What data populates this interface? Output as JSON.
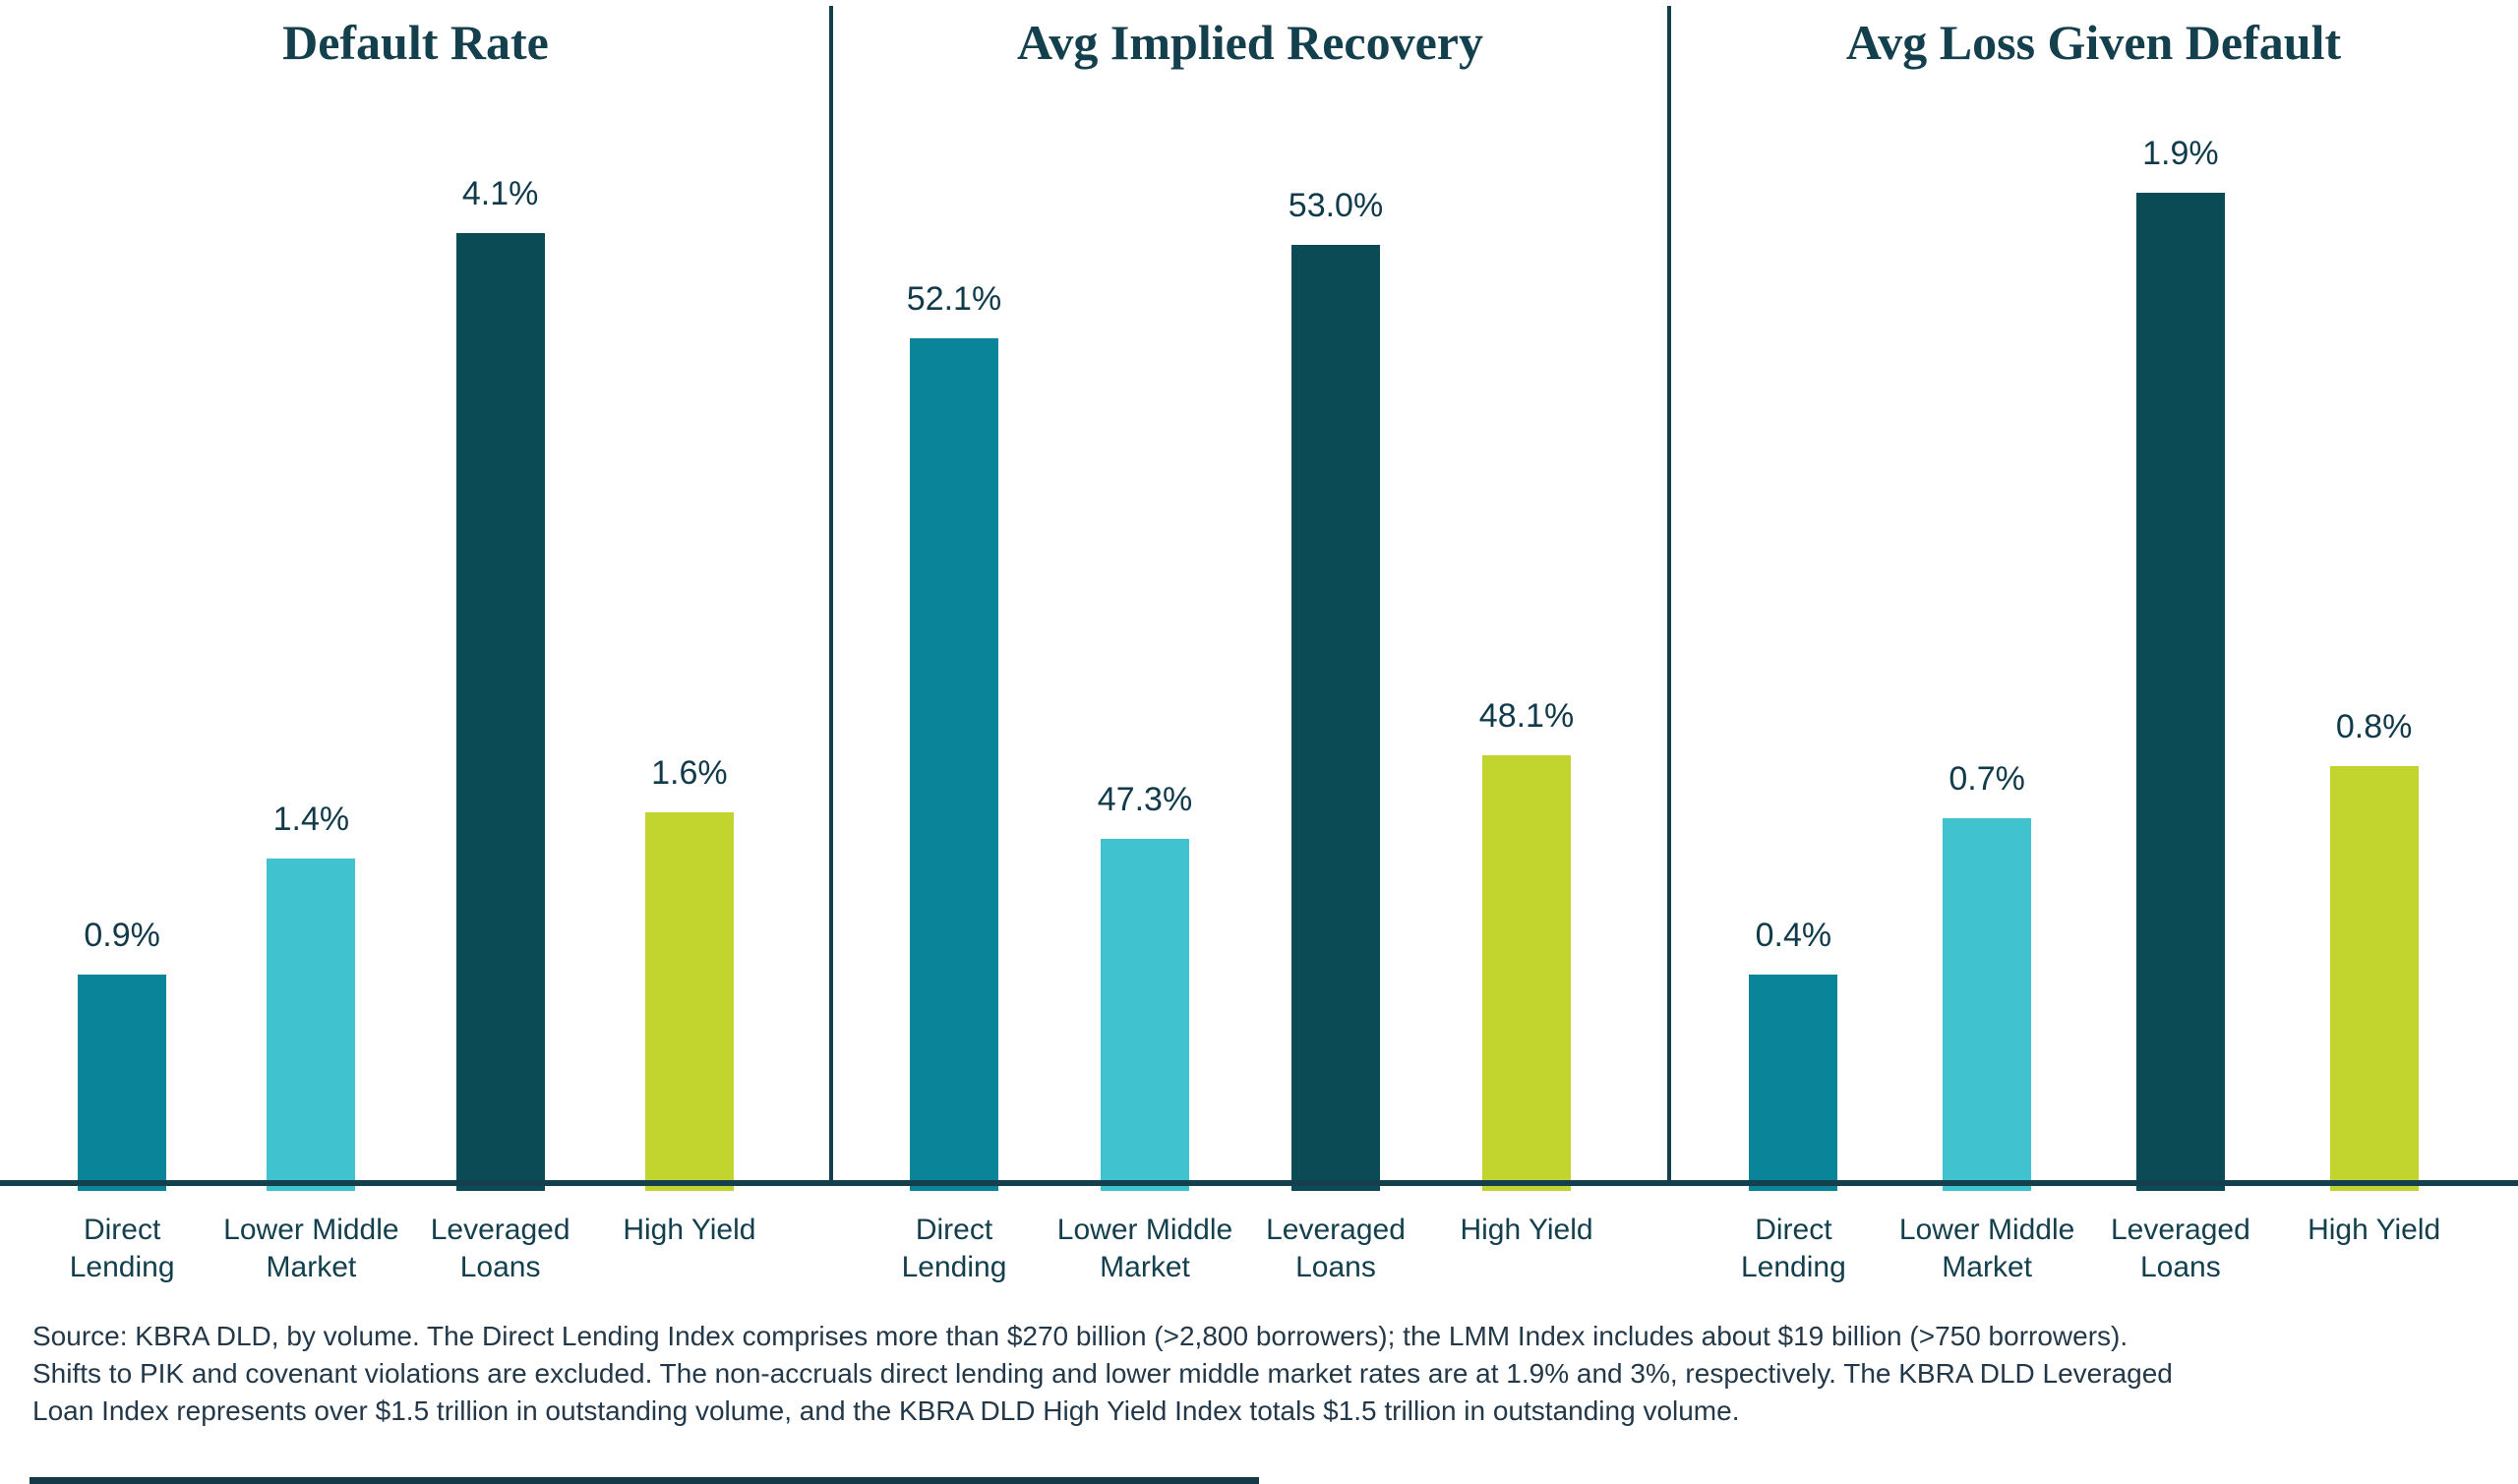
{
  "colors": {
    "accent": "#14404e",
    "note_text": "#233848",
    "direct_lending": "#0a8498",
    "lower_middle_market": "#40c3cf",
    "leveraged_loans": "#0b4b56",
    "high_yield": "#c2d42e"
  },
  "chart_data": {
    "type": "bar",
    "grid": false,
    "legend": false,
    "categories": [
      "Direct Lending",
      "Lower Middle Market",
      "Leveraged Loans",
      "High Yield"
    ],
    "panels": [
      {
        "title": "Default Rate",
        "ylim": [
          0,
          4.5
        ],
        "bars": [
          {
            "category": "Direct Lending",
            "cat_line1": "Direct",
            "cat_line2": "Lending",
            "value": 0.9,
            "label": "0.9%",
            "color": "#0a8498"
          },
          {
            "category": "Lower Middle Market",
            "cat_line1": "Lower Middle",
            "cat_line2": "Market",
            "value": 1.4,
            "label": "1.4%",
            "color": "#40c3cf"
          },
          {
            "category": "Leveraged Loans",
            "cat_line1": "Leveraged",
            "cat_line2": "Loans",
            "value": 4.1,
            "label": "4.1%",
            "color": "#0b4b56"
          },
          {
            "category": "High Yield",
            "cat_line1": "High Yield",
            "cat_line2": "",
            "value": 1.6,
            "label": "1.6%",
            "color": "#c2d42e"
          }
        ]
      },
      {
        "title": "Avg Implied Recovery",
        "ylim": [
          44,
          54
        ],
        "bars": [
          {
            "category": "Direct Lending",
            "cat_line1": "Direct",
            "cat_line2": "Lending",
            "value": 52.1,
            "label": "52.1%",
            "color": "#0a8498"
          },
          {
            "category": "Lower Middle Market",
            "cat_line1": "Lower Middle",
            "cat_line2": "Market",
            "value": 47.3,
            "label": "47.3%",
            "color": "#40c3cf"
          },
          {
            "category": "Leveraged Loans",
            "cat_line1": "Leveraged",
            "cat_line2": "Loans",
            "value": 53.0,
            "label": "53.0%",
            "color": "#0b4b56"
          },
          {
            "category": "High Yield",
            "cat_line1": "High Yield",
            "cat_line2": "",
            "value": 48.1,
            "label": "48.1%",
            "color": "#c2d42e"
          }
        ]
      },
      {
        "title": "Avg Loss Given Default",
        "ylim": [
          0,
          2.0
        ],
        "bars": [
          {
            "category": "Direct Lending",
            "cat_line1": "Direct",
            "cat_line2": "Lending",
            "value": 0.4,
            "label": "0.4%",
            "color": "#0a8498"
          },
          {
            "category": "Lower Middle Market",
            "cat_line1": "Lower Middle",
            "cat_line2": "Market",
            "value": 0.7,
            "label": "0.7%",
            "color": "#40c3cf"
          },
          {
            "category": "Leveraged Loans",
            "cat_line1": "Leveraged",
            "cat_line2": "Loans",
            "value": 1.9,
            "label": "1.9%",
            "color": "#0b4b56"
          },
          {
            "category": "High Yield",
            "cat_line1": "High Yield",
            "cat_line2": "",
            "value": 0.8,
            "label": "0.8%",
            "color": "#c2d42e"
          }
        ]
      }
    ]
  },
  "source_note": {
    "line1": "Source: KBRA DLD, by volume. The Direct Lending Index comprises more than $270 billion (>2,800 borrowers); the LMM Index includes about $19 billion (>750 borrowers).",
    "line2": "Shifts to PIK and covenant violations are excluded. The non-accruals direct lending and lower middle market rates are at 1.9% and 3%, respectively. The KBRA DLD Leveraged",
    "line3": "Loan Index represents over $1.5 trillion in outstanding volume, and the KBRA DLD High Yield Index totals $1.5 trillion in outstanding volume."
  }
}
